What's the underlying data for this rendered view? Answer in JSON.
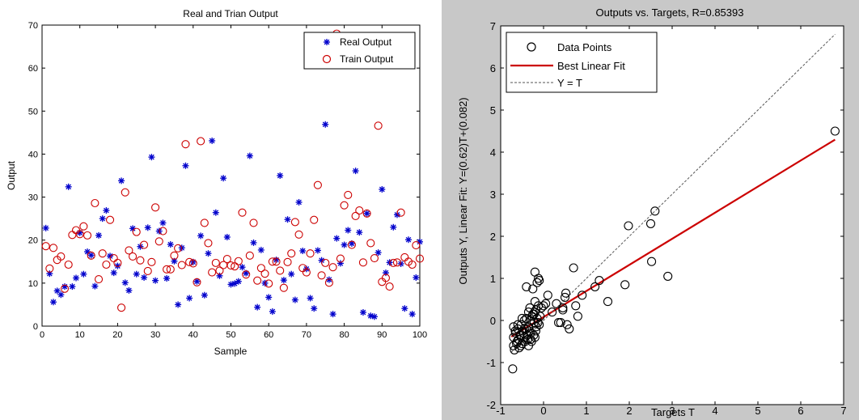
{
  "chart_data": [
    {
      "type": "scatter",
      "title": "Real and Trian Output",
      "xlabel": "Sample",
      "ylabel": "Output",
      "xlim": [
        0,
        100
      ],
      "ylim": [
        0,
        70
      ],
      "xticks": [
        0,
        10,
        20,
        30,
        40,
        50,
        60,
        70,
        80,
        90,
        100
      ],
      "yticks": [
        0,
        10,
        20,
        30,
        40,
        50,
        60,
        70
      ],
      "legend_position": "top-right",
      "series": [
        {
          "name": "Real Output",
          "marker": "asterisk",
          "color": "#0000cc",
          "x": [
            1,
            2,
            3,
            4,
            5,
            6,
            7,
            8,
            9,
            10,
            11,
            12,
            13,
            14,
            15,
            16,
            17,
            18,
            19,
            20,
            21,
            22,
            23,
            24,
            25,
            26,
            27,
            28,
            29,
            30,
            31,
            32,
            33,
            34,
            35,
            36,
            37,
            38,
            39,
            40,
            41,
            42,
            43,
            44,
            45,
            46,
            47,
            48,
            49,
            50,
            51,
            52,
            53,
            54,
            55,
            56,
            57,
            58,
            59,
            60,
            61,
            62,
            63,
            64,
            65,
            66,
            67,
            68,
            69,
            70,
            71,
            72,
            73,
            74,
            75,
            76,
            77,
            78,
            79,
            80,
            81,
            82,
            83,
            84,
            85,
            86,
            87,
            88,
            89,
            90,
            91,
            92,
            93,
            94,
            95,
            96,
            97,
            98,
            99,
            100
          ],
          "y": [
            22.8,
            12.2,
            5.6,
            8.2,
            7.3,
            9.2,
            32.4,
            9.2,
            11.2,
            21.7,
            12.1,
            17.3,
            16.5,
            9.3,
            21.1,
            25,
            26.9,
            16.3,
            12.4,
            14,
            33.8,
            10.1,
            8.3,
            22.7,
            12.1,
            18.5,
            11.3,
            22.9,
            39.3,
            10.6,
            22.1,
            24,
            11.1,
            19,
            15.1,
            5,
            18.2,
            37.3,
            6.5,
            14.9,
            10.4,
            21,
            7.2,
            16.9,
            43.1,
            26.4,
            11.7,
            34.4,
            20.7,
            9.7,
            9.9,
            10.4,
            13.7,
            12.3,
            39.6,
            19.4,
            4.4,
            17.7,
            10,
            6.7,
            3.4,
            15.4,
            35,
            10.7,
            24.8,
            12.1,
            6.1,
            28.8,
            17.5,
            13.3,
            6.5,
            4.1,
            17.6,
            15.3,
            46.9,
            10.8,
            2.8,
            20.4,
            14.6,
            18.9,
            22.3,
            19.2,
            36.1,
            21.8,
            3.2,
            26.2,
            2.4,
            2.2,
            17.1,
            31.8,
            12.4,
            14.8,
            23,
            25.9,
            14.5,
            4.1,
            20.1,
            2.8,
            11.3,
            19.6
          ]
        },
        {
          "name": "Train Output",
          "marker": "circle",
          "color": "#cc0000",
          "x": [
            1,
            2,
            3,
            4,
            5,
            6,
            7,
            8,
            9,
            10,
            11,
            12,
            13,
            14,
            15,
            16,
            17,
            18,
            19,
            20,
            21,
            22,
            23,
            24,
            25,
            26,
            27,
            28,
            29,
            30,
            31,
            32,
            33,
            34,
            35,
            36,
            37,
            38,
            39,
            40,
            41,
            42,
            43,
            44,
            45,
            46,
            47,
            48,
            49,
            50,
            51,
            52,
            53,
            54,
            55,
            56,
            57,
            58,
            59,
            60,
            61,
            62,
            63,
            64,
            65,
            66,
            67,
            68,
            69,
            70,
            71,
            72,
            73,
            74,
            75,
            76,
            77,
            78,
            79,
            80,
            81,
            82,
            83,
            84,
            85,
            86,
            87,
            88,
            89,
            90,
            91,
            92,
            93,
            94,
            95,
            96,
            97,
            98,
            99,
            100
          ],
          "y": [
            18.6,
            13.4,
            18.2,
            15.4,
            16.2,
            8.7,
            14.3,
            21.2,
            22.3,
            21.4,
            23.2,
            21.1,
            16.4,
            28.6,
            10.9,
            16.9,
            14.3,
            24.7,
            15.8,
            14.7,
            4.3,
            31.1,
            17.6,
            16.2,
            21.9,
            15.3,
            18.9,
            12.8,
            14.9,
            27.6,
            19.7,
            22.1,
            13.2,
            13.2,
            16.4,
            18.1,
            14.2,
            42.3,
            14.9,
            14.6,
            10.2,
            43,
            24,
            19.3,
            12.5,
            14.7,
            12.9,
            14.2,
            15.6,
            14.1,
            13.9,
            15.1,
            26.4,
            12,
            16.4,
            24,
            10.6,
            13.5,
            12.2,
            9.9,
            15,
            15,
            12.9,
            8.9,
            14.9,
            16.9,
            24.2,
            21.3,
            13.5,
            12.5,
            16.9,
            24.7,
            32.8,
            11.8,
            14.7,
            10.1,
            13.7,
            68,
            15.7,
            28.1,
            30.5,
            18.9,
            25.6,
            26.9,
            14.8,
            26.2,
            19.3,
            15.8,
            46.6,
            10.3,
            11.2,
            9.2,
            14.7,
            14.8,
            26.4,
            16,
            15,
            14.3,
            18.8,
            15.7
          ]
        }
      ]
    },
    {
      "type": "scatter",
      "title": "Outputs vs. Targets, R=0.85393",
      "xlabel": "Targets T",
      "ylabel": "Outputs Y,  Linear Fit:  Y=(0.62)T+(0.082)",
      "xlim": [
        -1,
        7
      ],
      "ylim": [
        -2,
        7
      ],
      "xticks": [
        -1,
        0,
        1,
        2,
        3,
        4,
        5,
        6,
        7
      ],
      "yticks": [
        -2,
        -1,
        0,
        1,
        2,
        3,
        4,
        5,
        6,
        7
      ],
      "legend_position": "top-left",
      "series": [
        {
          "name": "Data Points",
          "marker": "circle",
          "color": "#000000",
          "x": [
            -0.7,
            -0.7,
            -0.65,
            -0.62,
            -0.6,
            -0.58,
            -0.55,
            -0.52,
            -0.5,
            -0.48,
            -0.45,
            -0.45,
            -0.4,
            -0.4,
            -0.38,
            -0.35,
            -0.32,
            -0.3,
            -0.3,
            -0.28,
            -0.25,
            -0.22,
            -0.2,
            -0.2,
            -0.18,
            -0.15,
            -0.12,
            -0.1,
            -0.08,
            -0.05,
            -0.68,
            -0.63,
            -0.57,
            -0.53,
            -0.47,
            -0.43,
            -0.37,
            -0.33,
            -0.27,
            -0.23,
            -0.17,
            -0.13,
            -0.7,
            -0.66,
            -0.6,
            -0.55,
            -0.5,
            -0.45,
            -0.4,
            -0.35,
            -0.3,
            -0.25,
            -0.2,
            -0.15,
            -0.1,
            -0.12,
            -0.35,
            -0.18,
            -0.2,
            -0.22,
            0,
            0.1,
            0.2,
            0.3,
            0.4,
            0.45,
            0.5,
            0.55,
            0.6,
            0.7,
            0.75,
            0.8,
            0.9,
            1.2,
            1.3,
            1.5,
            1.9,
            1.98,
            2.5,
            2.52,
            2.6,
            2.9,
            6.8,
            0.35,
            0.52,
            0.45,
            0.05,
            -0.72
          ],
          "y": [
            -0.6,
            -0.4,
            -0.3,
            -0.5,
            -0.2,
            -0.45,
            -0.35,
            -0.1,
            -0.55,
            -0.25,
            0,
            -0.4,
            -0.2,
            0.05,
            -0.35,
            -0.15,
            0.3,
            -0.3,
            0,
            -0.5,
            0.15,
            -0.05,
            0.2,
            -0.4,
            -0.25,
            0.05,
            0.35,
            -0.1,
            0.1,
            0.3,
            -0.7,
            -0.55,
            -0.65,
            -0.6,
            -0.3,
            -0.5,
            -0.45,
            -0.25,
            0.1,
            -0.35,
            -0.15,
            -0.05,
            -0.15,
            -0.25,
            -0.1,
            -0.35,
            0.05,
            -0.2,
            0.8,
            -0.6,
            -0.45,
            0.75,
            1.15,
            0.9,
            0.95,
            1.0,
            0.2,
            0.25,
            0.45,
            0.15,
            0.35,
            0.6,
            0.2,
            0.4,
            -0.05,
            0.25,
            0.55,
            -0.1,
            -0.2,
            1.25,
            0.35,
            0.1,
            0.6,
            0.8,
            0.95,
            0.45,
            0.85,
            2.25,
            2.3,
            1.4,
            2.6,
            1.05,
            4.5,
            -0.05,
            0.65,
            0.3,
            0.4,
            -1.15
          ]
        },
        {
          "name": "Best Linear Fit",
          "kind": "line",
          "color": "#cc0000",
          "x": [
            -0.75,
            6.8
          ],
          "y": [
            -0.385,
            4.298
          ]
        },
        {
          "name": "Y = T",
          "kind": "line-dashed",
          "color": "#555555",
          "x": [
            -0.75,
            6.8
          ],
          "y": [
            -0.75,
            6.8
          ]
        }
      ]
    }
  ]
}
